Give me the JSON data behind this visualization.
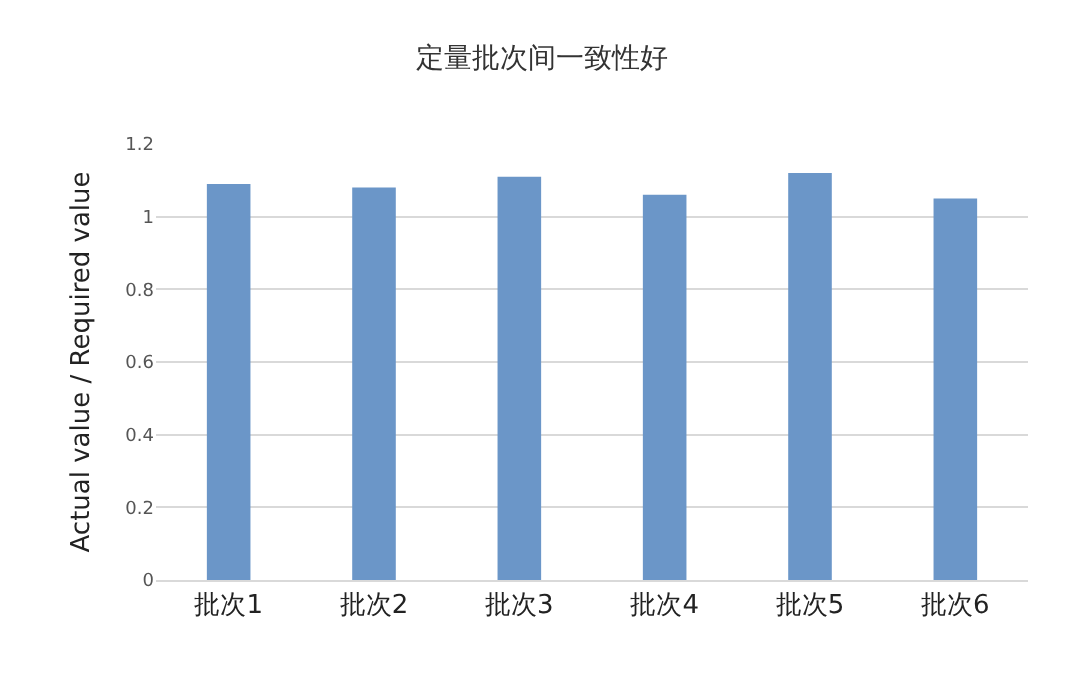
{
  "chart_data": {
    "type": "bar",
    "title": "定量批次间一致性好",
    "ylabel": "Actual value / Required value",
    "categories": [
      "批次1",
      "批次2",
      "批次3",
      "批次4",
      "批次5",
      "批次6"
    ],
    "values": [
      1.09,
      1.08,
      1.11,
      1.06,
      1.12,
      1.05
    ],
    "color": "#6b96c8",
    "ylim": [
      0,
      1.2
    ],
    "yticks": [
      0,
      0.2,
      0.4,
      0.6,
      0.8,
      1,
      1.2
    ],
    "grid": "y",
    "legend": false
  }
}
